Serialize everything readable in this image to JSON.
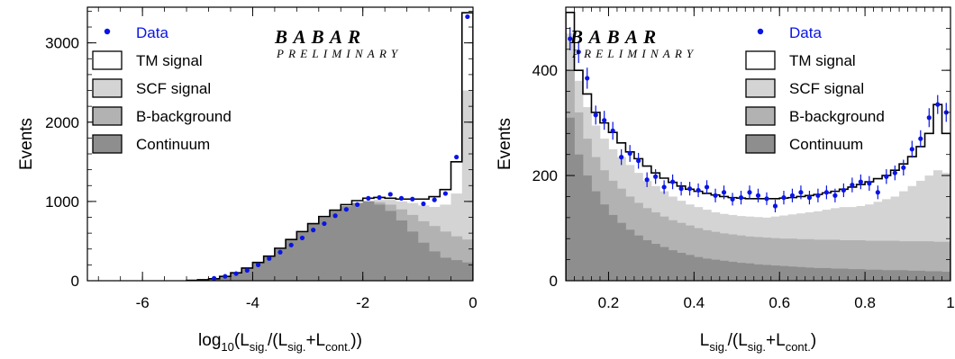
{
  "colors": {
    "tm_signal": "#ffffff",
    "scf_signal": "#d4d4d4",
    "b_background": "#b2b2b2",
    "continuum": "#8e8e8e",
    "data_points": "#0a14e6",
    "frame": "#000000"
  },
  "chart_data": [
    {
      "type": "histogram",
      "xlabel": {
        "text": "log",
        "sub1": "10",
        "mid1": "(L",
        "sub2": "sig.",
        "mid2": "/(L",
        "sub3": "sig.",
        "mid3": "+L",
        "sub4": "cont.",
        "tail": "))"
      },
      "ylabel": "Events",
      "xlim": [
        -7,
        0
      ],
      "ylim": [
        0,
        3450
      ],
      "xticks": [
        -6,
        -4,
        -2,
        0
      ],
      "xtick_labels": [
        "-6",
        "-4",
        "-2",
        "0"
      ],
      "yticks": [
        0,
        1000,
        2000,
        3000
      ],
      "ytick_labels": [
        "0",
        "1000",
        "2000",
        "3000"
      ],
      "bin_edges": [
        -5.2,
        -5.0,
        -4.8,
        -4.6,
        -4.4,
        -4.2,
        -4.0,
        -3.8,
        -3.6,
        -3.4,
        -3.2,
        -3.0,
        -2.8,
        -2.6,
        -2.4,
        -2.2,
        -2.0,
        -1.8,
        -1.6,
        -1.4,
        -1.2,
        -1.0,
        -0.8,
        -0.6,
        -0.4,
        -0.2,
        0.0
      ],
      "stack": [
        {
          "name": "Continuum",
          "color_key": "continuum",
          "values": [
            5,
            12,
            25,
            55,
            100,
            160,
            230,
            310,
            410,
            520,
            620,
            720,
            800,
            880,
            940,
            980,
            1000,
            960,
            880,
            760,
            620,
            480,
            370,
            290,
            260,
            230
          ]
        },
        {
          "name": "B-background",
          "color_key": "b_background",
          "values": [
            5,
            12,
            25,
            55,
            100,
            160,
            230,
            310,
            410,
            520,
            620,
            720,
            800,
            880,
            940,
            980,
            1000,
            990,
            960,
            900,
            830,
            750,
            690,
            620,
            560,
            520
          ]
        },
        {
          "name": "SCF signal",
          "color_key": "scf_signal",
          "values": [
            5,
            12,
            25,
            55,
            100,
            160,
            230,
            310,
            410,
            520,
            620,
            720,
            800,
            880,
            940,
            985,
            1010,
            1020,
            1020,
            1000,
            980,
            950,
            930,
            960,
            1100,
            2400
          ]
        },
        {
          "name": "TM signal",
          "color_key": "tm_signal",
          "values": [
            5,
            12,
            25,
            55,
            100,
            160,
            230,
            310,
            410,
            520,
            620,
            720,
            810,
            890,
            960,
            1010,
            1040,
            1050,
            1040,
            1030,
            1030,
            1030,
            1060,
            1150,
            1500,
            3380
          ]
        }
      ],
      "data_points": {
        "x": [
          -4.7,
          -4.5,
          -4.3,
          -4.1,
          -3.9,
          -3.7,
          -3.5,
          -3.3,
          -3.1,
          -2.9,
          -2.7,
          -2.5,
          -2.3,
          -2.1,
          -1.9,
          -1.7,
          -1.5,
          -1.3,
          -1.1,
          -0.9,
          -0.7,
          -0.5,
          -0.3,
          -0.1
        ],
        "y": [
          30,
          55,
          90,
          130,
          200,
          280,
          360,
          450,
          540,
          640,
          720,
          820,
          900,
          960,
          1040,
          1050,
          1090,
          1040,
          1030,
          970,
          1020,
          1100,
          1560,
          3330
        ]
      },
      "legend": [
        "Data",
        "TM signal",
        "SCF signal",
        "B-background",
        "Continuum"
      ],
      "legend_position": "top-left",
      "logo": {
        "line1": "B A B A R",
        "line2": "PRELIMINARY"
      }
    },
    {
      "type": "histogram",
      "xlabel": {
        "text": "L",
        "sub1": "sig.",
        "mid1": "/(L",
        "sub2": "sig.",
        "mid2": "+L",
        "sub3": "cont.",
        "tail": ")"
      },
      "ylabel": "Events",
      "xlim": [
        0.1,
        1.0
      ],
      "ylim": [
        0,
        520
      ],
      "xticks": [
        0.2,
        0.4,
        0.6,
        0.8,
        1.0
      ],
      "xtick_labels": [
        "0.2",
        "0.4",
        "0.6",
        "0.8",
        "1"
      ],
      "yticks": [
        0,
        200,
        400
      ],
      "ytick_labels": [
        "0",
        "200",
        "400"
      ],
      "bin_edges": [
        0.1,
        0.12,
        0.14,
        0.16,
        0.18,
        0.2,
        0.22,
        0.24,
        0.26,
        0.28,
        0.3,
        0.32,
        0.34,
        0.36,
        0.38,
        0.4,
        0.42,
        0.44,
        0.46,
        0.48,
        0.5,
        0.52,
        0.54,
        0.56,
        0.58,
        0.6,
        0.62,
        0.64,
        0.66,
        0.68,
        0.7,
        0.72,
        0.74,
        0.76,
        0.78,
        0.8,
        0.82,
        0.84,
        0.86,
        0.88,
        0.9,
        0.92,
        0.94,
        0.96,
        0.98,
        1.0
      ],
      "stack": [
        {
          "name": "Continuum",
          "color_key": "continuum",
          "values": [
            310,
            240,
            200,
            170,
            145,
            125,
            110,
            97,
            86,
            77,
            70,
            64,
            58,
            53,
            49,
            45,
            42,
            40,
            38,
            36,
            34,
            33,
            31,
            30,
            29,
            28,
            27,
            26,
            25,
            24,
            24,
            23,
            23,
            22,
            22,
            21,
            21,
            20,
            20,
            20,
            19,
            19,
            18,
            18,
            17
          ]
        },
        {
          "name": "B-background",
          "color_key": "b_background",
          "values": [
            400,
            320,
            270,
            235,
            210,
            190,
            175,
            160,
            148,
            138,
            130,
            122,
            115,
            110,
            105,
            100,
            96,
            93,
            90,
            88,
            86,
            84,
            83,
            82,
            81,
            80,
            80,
            79,
            79,
            78,
            78,
            78,
            77,
            77,
            77,
            76,
            76,
            76,
            76,
            75,
            75,
            75,
            75,
            74,
            74
          ]
        },
        {
          "name": "SCF signal",
          "color_key": "scf_signal",
          "values": [
            470,
            380,
            330,
            295,
            270,
            250,
            235,
            220,
            205,
            190,
            180,
            170,
            160,
            152,
            145,
            140,
            135,
            130,
            127,
            125,
            123,
            122,
            121,
            120,
            122,
            124,
            126,
            128,
            130,
            132,
            135,
            138,
            140,
            140,
            142,
            145,
            150,
            155,
            160,
            170,
            180,
            190,
            200,
            210,
            205
          ]
        },
        {
          "name": "TM signal",
          "color_key": "tm_signal",
          "values": [
            510,
            400,
            355,
            320,
            300,
            282,
            262,
            245,
            232,
            218,
            205,
            195,
            187,
            180,
            174,
            170,
            166,
            163,
            160,
            158,
            157,
            156,
            156,
            156,
            156,
            157,
            158,
            160,
            162,
            164,
            167,
            170,
            174,
            178,
            183,
            188,
            194,
            200,
            210,
            222,
            236,
            255,
            280,
            335,
            280
          ]
        }
      ],
      "data_points": {
        "x": [
          0.11,
          0.13,
          0.15,
          0.17,
          0.19,
          0.21,
          0.23,
          0.25,
          0.27,
          0.29,
          0.31,
          0.33,
          0.35,
          0.37,
          0.39,
          0.41,
          0.43,
          0.45,
          0.47,
          0.49,
          0.51,
          0.53,
          0.55,
          0.57,
          0.59,
          0.61,
          0.63,
          0.65,
          0.67,
          0.69,
          0.71,
          0.73,
          0.75,
          0.77,
          0.79,
          0.81,
          0.83,
          0.85,
          0.87,
          0.89,
          0.91,
          0.93,
          0.95,
          0.97,
          0.99
        ],
        "y": [
          460,
          435,
          385,
          315,
          305,
          285,
          235,
          242,
          228,
          192,
          198,
          178,
          188,
          175,
          175,
          172,
          178,
          162,
          168,
          155,
          158,
          168,
          162,
          156,
          142,
          158,
          162,
          168,
          158,
          162,
          168,
          162,
          172,
          182,
          188,
          185,
          168,
          198,
          205,
          215,
          250,
          270,
          310,
          335,
          320
        ],
        "err": [
          22,
          21,
          20,
          18,
          18,
          17,
          15,
          16,
          15,
          14,
          14,
          13,
          14,
          13,
          13,
          13,
          13,
          13,
          13,
          12,
          13,
          13,
          13,
          12,
          12,
          13,
          13,
          13,
          13,
          13,
          13,
          13,
          13,
          14,
          14,
          14,
          13,
          14,
          14,
          15,
          16,
          16,
          18,
          18,
          18
        ]
      },
      "legend": [
        "Data",
        "TM signal",
        "SCF signal",
        "B-background",
        "Continuum"
      ],
      "legend_position": "top-right",
      "logo": {
        "line1": "B A B A R",
        "line2": "PRELIMINARY"
      }
    }
  ]
}
